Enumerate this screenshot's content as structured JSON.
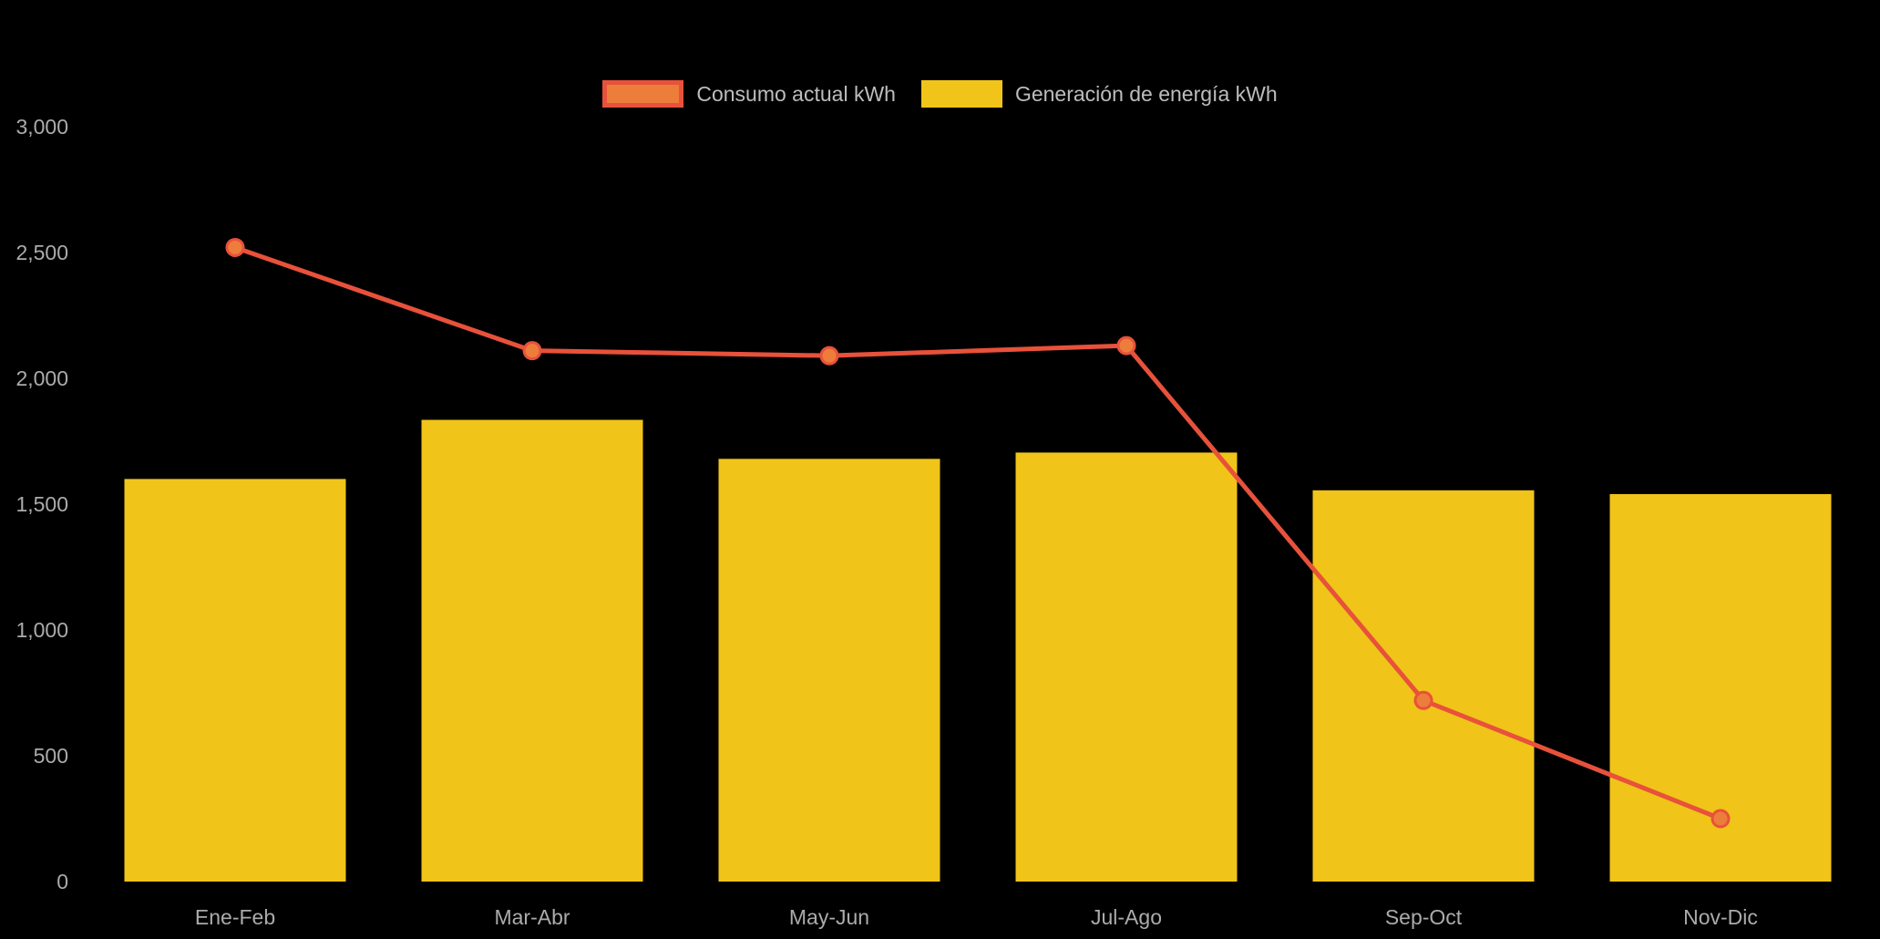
{
  "chart_data": {
    "type": "bar",
    "subtype": "bar-with-line-overlay",
    "categories": [
      "Ene-Feb",
      "Mar-Abr",
      "May-Jun",
      "Jul-Ago",
      "Sep-Oct",
      "Nov-Dic"
    ],
    "series": [
      {
        "name": "Consumo actual kWh",
        "type": "line",
        "color": "#E8513B",
        "marker_fill": "#ED7D3B",
        "values": [
          2520,
          2110,
          2090,
          2130,
          720,
          250
        ]
      },
      {
        "name": "Generación de energía kWh",
        "type": "bar",
        "color": "#F0C419",
        "values": [
          1600,
          1835,
          1680,
          1705,
          1555,
          1540
        ]
      }
    ],
    "title": "",
    "xlabel": "",
    "ylabel": "",
    "ylim": [
      0,
      3000
    ],
    "yticks": [
      0,
      500,
      1000,
      1500,
      2000,
      2500,
      3000
    ],
    "ytick_labels": [
      "0",
      "500",
      "1,000",
      "1,500",
      "2,000",
      "2,500",
      "3,000"
    ],
    "grid": false,
    "legend_position": "top-center",
    "background": "#000000",
    "tick_color": "#ABABAB",
    "xlabel_color": "#ABABAB"
  },
  "legend": {
    "items": [
      {
        "label": "Consumo actual kWh",
        "swatch_fill": "#ED7D3B",
        "swatch_stroke": "#E8513B"
      },
      {
        "label": "Generación de energía kWh",
        "swatch_fill": "#F0C419",
        "swatch_stroke": "#F0C419"
      }
    ]
  }
}
